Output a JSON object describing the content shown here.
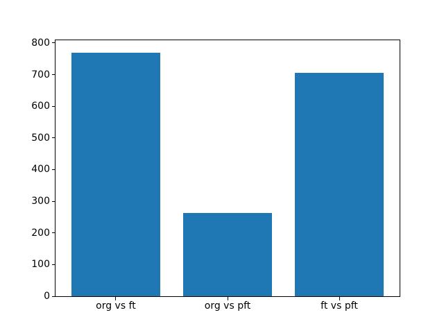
{
  "figure": {
    "background": "#ffffff"
  },
  "chart_data": {
    "type": "bar",
    "title": "",
    "xlabel": "",
    "ylabel": "",
    "categories": [
      "org vs ft",
      "org vs pft",
      "ft vs pft"
    ],
    "values": [
      770,
      262,
      705
    ],
    "yticks": [
      0,
      100,
      200,
      300,
      400,
      500,
      600,
      700,
      800
    ],
    "ylim": [
      0,
      808.5
    ],
    "bar_color": "#1f77b4",
    "axis_color": "#000000",
    "text_color": "#000000",
    "plot_background": "#ffffff",
    "grid": false,
    "legend": null,
    "bar_width_fraction": 0.8,
    "category_margin_fraction": 0.54
  }
}
